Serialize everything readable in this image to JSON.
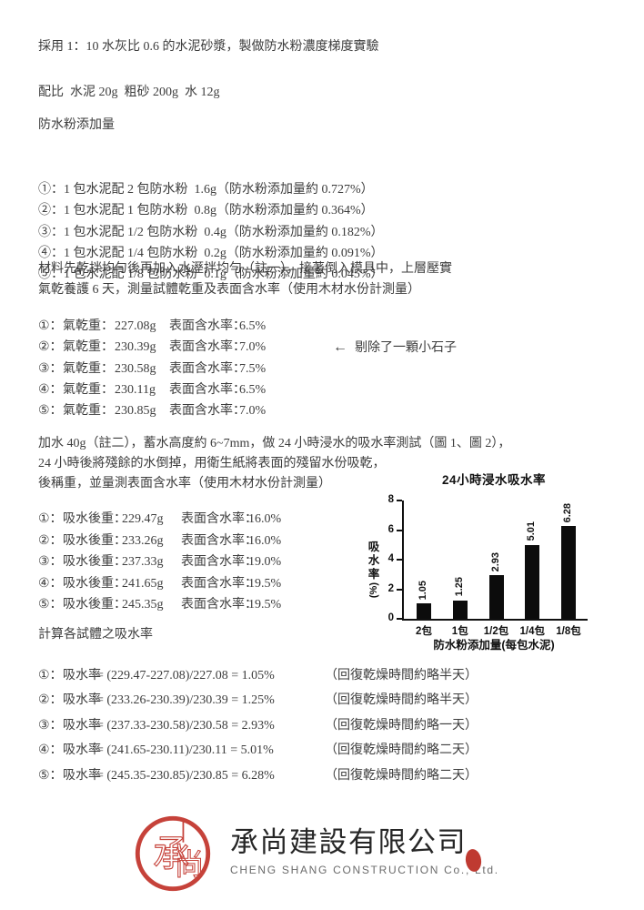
{
  "colors": {
    "text": "#3c3c3c",
    "bar": "#0c0c0c",
    "brand_red": "#c6423a",
    "company_en_gray": "#6b6b6b"
  },
  "intro": {
    "line1": "採用 1：10 水灰比 0.6 的水泥砂漿，製做防水粉濃度梯度實驗",
    "mix_line": "配比  水泥 20g  粗砂 200g  水 12g"
  },
  "additive": {
    "heading": "防水粉添加量",
    "items": [
      "①：1 包水泥配 2 包防水粉  1.6g（防水粉添加量約 0.727%）",
      "②：1 包水泥配 1 包防水粉  0.8g（防水粉添加量約 0.364%）",
      "③：1 包水泥配 1/2 包防水粉  0.4g（防水粉添加量約 0.182%）",
      "④：1 包水泥配 1/4 包防水粉  0.2g（防水粉添加量約 0.091%）",
      "⑤：1 包水泥配 1/8 包防水粉  0.1g（防水粉添加量約 0.045%）"
    ]
  },
  "prep": {
    "line1": "材料先乾拌均勻後再加入水溼拌均勻（註一），接著倒入模具中，上層壓實",
    "line2": "氣乾養護 6 天，測量試體乾重及表面含水率（使用木材水份計測量）"
  },
  "dry": {
    "rows": [
      {
        "num": "①：",
        "label": "氣乾重：",
        "weight": "227.08g",
        "rate_label": "表面含水率：",
        "rate": "6.5%"
      },
      {
        "num": "②：",
        "label": "氣乾重：",
        "weight": "230.39g",
        "rate_label": "表面含水率：",
        "rate": "7.0%"
      },
      {
        "num": "③：",
        "label": "氣乾重：",
        "weight": "230.58g",
        "rate_label": "表面含水率：",
        "rate": "7.5%"
      },
      {
        "num": "④：",
        "label": "氣乾重：",
        "weight": "230.11g",
        "rate_label": "表面含水率：",
        "rate": "6.5%"
      },
      {
        "num": "⑤：",
        "label": "氣乾重：",
        "weight": "230.85g",
        "rate_label": "表面含水率：",
        "rate": "7.0%"
      }
    ],
    "note_arrow": "←",
    "note": "剔除了一顆小石子"
  },
  "soak": {
    "line1": "加水 40g（註二），蓄水高度約 6~7mm，做 24 小時浸水的吸水率測試（圖 1、圖 2），",
    "line2": "24 小時後將殘餘的水倒掉，用衛生紙將表面的殘留水份吸乾，",
    "line3": "後稱重，並量測表面含水率（使用木材水份計測量）"
  },
  "wet": {
    "rows": [
      {
        "num": "①：",
        "label": "吸水後重：",
        "weight": "229.47g",
        "rate_label": "表面含水率：",
        "rate": "16.0%"
      },
      {
        "num": "②：",
        "label": "吸水後重：",
        "weight": "233.26g",
        "rate_label": "表面含水率：",
        "rate": "16.0%"
      },
      {
        "num": "③：",
        "label": "吸水後重：",
        "weight": "237.33g",
        "rate_label": "表面含水率：",
        "rate": "19.0%"
      },
      {
        "num": "④：",
        "label": "吸水後重：",
        "weight": "241.65g",
        "rate_label": "表面含水率：",
        "rate": "19.5%"
      },
      {
        "num": "⑤：",
        "label": "吸水後重：",
        "weight": "245.35g",
        "rate_label": "表面含水率：",
        "rate": "19.5%"
      }
    ]
  },
  "calc": {
    "heading": "計算各試體之吸水率",
    "rows": [
      {
        "num": "①：",
        "label": "吸水率",
        "formula": "= (229.47-227.08)/227.08 = 1.05%",
        "note": "（回復乾燥時間約略半天）"
      },
      {
        "num": "②：",
        "label": "吸水率",
        "formula": "= (233.26-230.39)/230.39 = 1.25%",
        "note": "（回復乾燥時間約略半天）"
      },
      {
        "num": "③：",
        "label": "吸水率",
        "formula": "= (237.33-230.58)/230.58 = 2.93%",
        "note": "（回復乾燥時間約略一天）"
      },
      {
        "num": "④：",
        "label": "吸水率",
        "formula": "= (241.65-230.11)/230.11 = 5.01%",
        "note": "（回復乾燥時間約略二天）"
      },
      {
        "num": "⑤：",
        "label": "吸水率",
        "formula": "= (245.35-230.85)/230.85 = 6.28%",
        "note": "（回復乾燥時間約略二天）"
      }
    ]
  },
  "chart_data": {
    "type": "bar",
    "title": "24小時浸水吸水率",
    "categories": [
      "2包",
      "1包",
      "1/2包",
      "1/4包",
      "1/8包"
    ],
    "values": [
      1.05,
      1.25,
      2.93,
      5.01,
      6.28
    ],
    "value_labels": [
      "1.05",
      "1.25",
      "2.93",
      "5.01",
      "6.28"
    ],
    "xlabel": "防水粉添加量(每包水泥)",
    "ylabel": "吸水率(%)",
    "ylabel_main": "吸水率",
    "ylabel_unit": "(%)",
    "ylim": [
      0,
      8
    ],
    "yticks": [
      0,
      2,
      4,
      6,
      8
    ],
    "bar_color": "#0c0c0c",
    "grid": false,
    "legend_position": "none"
  },
  "footer": {
    "company_cn": "承尚建設有限公司",
    "company_en": "CHENG SHANG CONSTRUCTION Co., Ltd.",
    "mark_char_left": "承",
    "mark_char_right": "尚"
  }
}
